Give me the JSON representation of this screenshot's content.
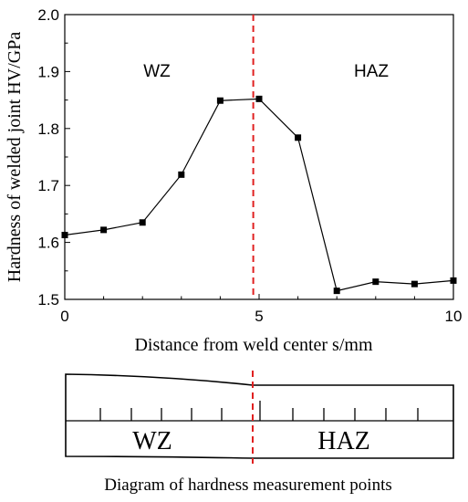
{
  "chart_data": {
    "type": "line",
    "x": [
      0,
      1,
      2,
      3,
      4,
      5,
      6,
      7,
      8,
      9,
      10
    ],
    "values": [
      1.613,
      1.622,
      1.635,
      1.719,
      1.849,
      1.852,
      1.784,
      1.515,
      1.531,
      1.527,
      1.533
    ],
    "xlabel": "Distance from weld center s/mm",
    "ylabel": "Hardness of welded joint HV/GPa",
    "xlim": [
      0,
      10
    ],
    "ylim": [
      1.5,
      2.0
    ],
    "x_ticks": [
      "0",
      "5",
      "10"
    ],
    "y_ticks": [
      "1.5",
      "1.6",
      "1.7",
      "1.8",
      "1.9",
      "2.0"
    ],
    "boundary_x": 4.85,
    "region_labels": {
      "left": "WZ",
      "right": "HAZ"
    },
    "line_color": "#000000",
    "boundary_color": "#e02020",
    "grid": false
  },
  "diagram": {
    "caption": "Diagram of hardness measurement points",
    "left_label": "WZ",
    "right_label": "HAZ",
    "boundary_color": "#e02020"
  }
}
